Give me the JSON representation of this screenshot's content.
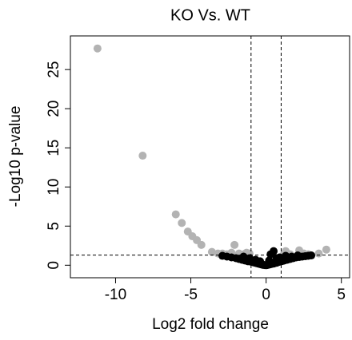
{
  "chart_data": {
    "type": "scatter",
    "title": "KO Vs. WT",
    "x_label": "Log2 fold change",
    "y_label": "-Log10 p-value",
    "series": [
      {
        "color": "#b3b3b3",
        "x": [
          -11.2,
          -8.2,
          -6.0,
          -5.6,
          -5.2,
          -4.9,
          -4.6,
          -4.3,
          -3.6,
          -3.2,
          -2.9,
          -2.6,
          -2.3,
          -2.1,
          -1.8,
          -1.5,
          -1.3,
          -1.1,
          1.2,
          1.3,
          1.6,
          2.2,
          2.5,
          2.8,
          3.5,
          4.0
        ],
        "values": [
          27.7,
          14.0,
          6.5,
          5.4,
          4.3,
          3.7,
          3.2,
          2.6,
          1.7,
          1.5,
          1.5,
          1.4,
          1.6,
          2.6,
          1.5,
          1.4,
          1.6,
          1.5,
          1.5,
          1.8,
          1.4,
          1.9,
          1.5,
          1.4,
          1.5,
          2.0
        ]
      },
      {
        "color": "#000000",
        "x": [
          -2.9,
          -2.6,
          -2.3,
          -2.0,
          -1.8,
          -1.6,
          -1.4,
          -1.2,
          -1.0,
          -0.9,
          -0.8,
          -0.7,
          -0.6,
          -0.5,
          -0.4,
          -0.3,
          -0.2,
          -0.1,
          0.0,
          0.1,
          0.2,
          0.3,
          0.4,
          0.5,
          0.6,
          0.7,
          0.8,
          0.9,
          1.0,
          1.1,
          1.2,
          1.4,
          1.6,
          1.8,
          2.0,
          2.2,
          2.4,
          2.6,
          2.8,
          3.0,
          -1.5,
          -1.1,
          -0.7,
          0.3,
          0.5,
          0.9,
          1.3,
          1.7,
          2.1,
          -0.4,
          0.2,
          0.7
        ],
        "values": [
          1.2,
          1.1,
          1.0,
          0.9,
          0.8,
          0.7,
          0.6,
          0.5,
          0.45,
          0.4,
          0.35,
          0.3,
          0.25,
          0.2,
          0.15,
          0.1,
          0.05,
          0.02,
          0.0,
          0.03,
          0.08,
          0.12,
          0.18,
          0.22,
          0.28,
          0.32,
          0.4,
          0.45,
          0.5,
          0.55,
          0.6,
          0.7,
          0.8,
          0.9,
          1.0,
          1.05,
          1.1,
          1.15,
          1.2,
          1.25,
          1.1,
          0.9,
          0.7,
          1.4,
          1.8,
          1.0,
          1.2,
          1.1,
          1.25,
          0.5,
          0.6,
          0.9
        ]
      }
    ],
    "xlim": [
      -13,
      5.6
    ],
    "ylim": [
      -1.6,
      29.3
    ],
    "xticks": [
      -10,
      -5,
      0,
      5
    ],
    "yticks": [
      0,
      5,
      10,
      15,
      20,
      25
    ],
    "vlines": [
      -1,
      1
    ],
    "hline": 1.3,
    "grid": false
  }
}
